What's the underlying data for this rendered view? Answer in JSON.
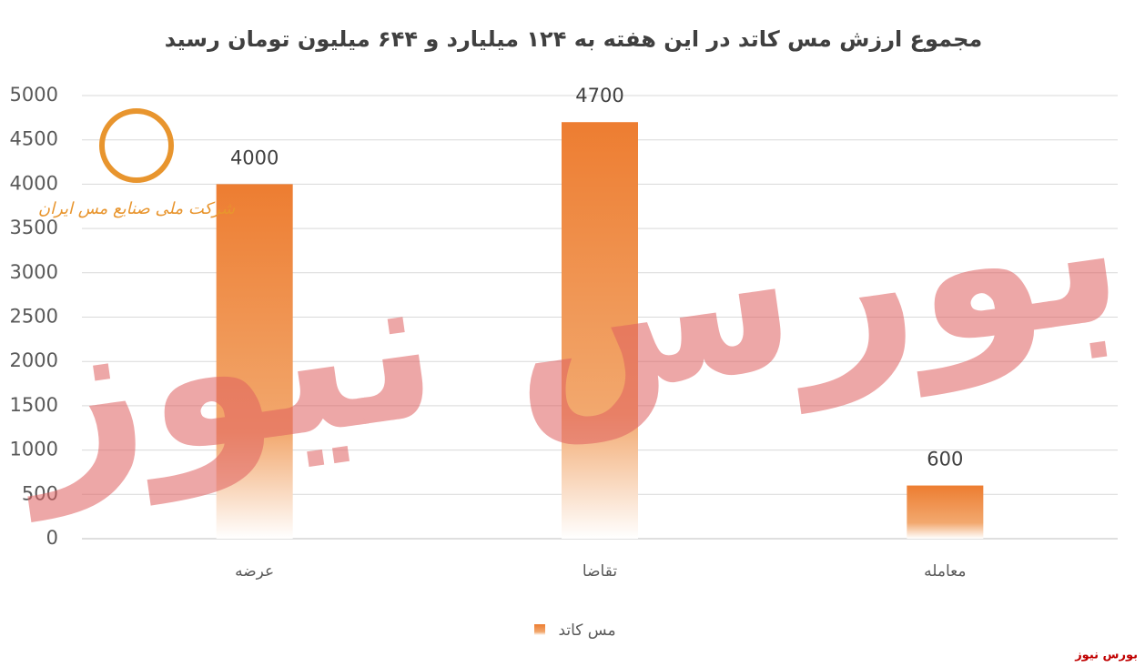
{
  "chart_data": {
    "type": "bar",
    "title": "مجموع ارزش مس کاتد در این هفته به ۱۲۴ میلیارد و ۶۴۴ میلیون تومان رسید",
    "categories": [
      "عرضه",
      "تقاضا",
      "معامله"
    ],
    "series": [
      {
        "name": "مس کاتد",
        "color": "#ed7d31",
        "values": [
          4000,
          4700,
          600
        ]
      }
    ],
    "ylim": [
      0,
      5000
    ],
    "yticks": [
      0,
      500,
      1000,
      1500,
      2000,
      2500,
      3000,
      3500,
      4000,
      4500,
      5000
    ],
    "grid": true,
    "legend": "bottom"
  },
  "logo_text": "شرکت ملی صنایع مس ایران",
  "watermark": "بورس نیوز",
  "footer": "بورس نیوز"
}
